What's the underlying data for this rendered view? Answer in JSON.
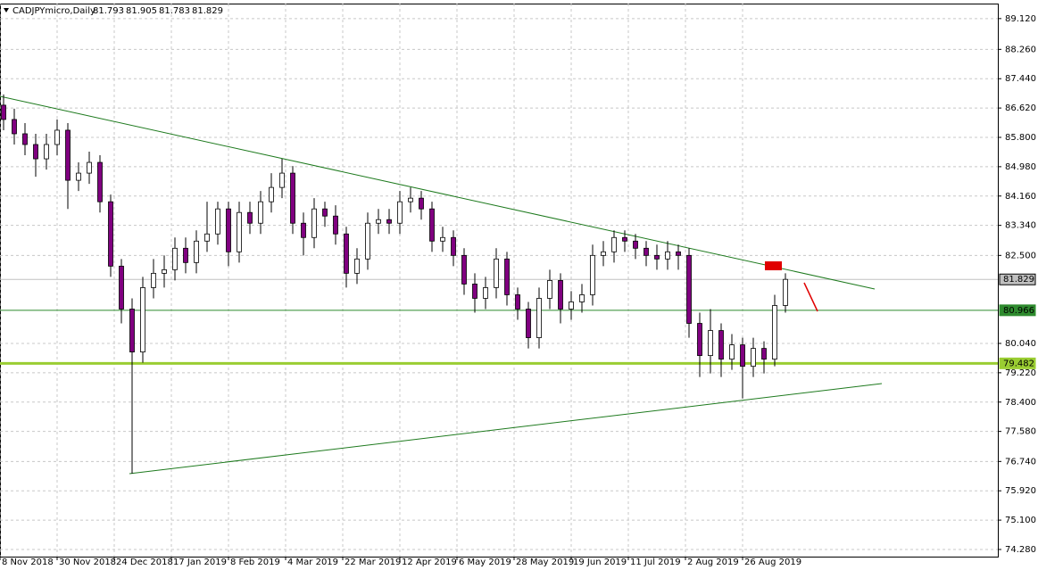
{
  "chart_data": {
    "type": "candlestick",
    "title": "CADJPYmicro,Daily",
    "quote": [
      81.793,
      81.905,
      81.783,
      81.829
    ],
    "up_color": "#ffffff",
    "down_color": "#800080",
    "xlim": [
      -1,
      278.5
    ],
    "ylim": [
      74.08,
      89.54
    ],
    "grid": true,
    "xticks": [
      {
        "value": -1,
        "label": "8 Nov 2018"
      },
      {
        "value": 15,
        "label": "30 Nov 2018"
      },
      {
        "value": 31,
        "label": "24 Dec 2018"
      },
      {
        "value": 47,
        "label": "17 Jan 2019"
      },
      {
        "value": 63,
        "label": "8 Feb 2019"
      },
      {
        "value": 79,
        "label": "4 Mar 2019"
      },
      {
        "value": 95,
        "label": "22 Mar 2019"
      },
      {
        "value": 111,
        "label": "12 Apr 2019"
      },
      {
        "value": 127,
        "label": "6 May 2019"
      },
      {
        "value": 143,
        "label": "28 May 2019"
      },
      {
        "value": 159,
        "label": "19 Jun 2019"
      },
      {
        "value": 175,
        "label": "11 Jul 2019"
      },
      {
        "value": 191,
        "label": "2 Aug 2019"
      },
      {
        "value": 207,
        "label": "26 Aug 2019"
      }
    ],
    "yticks": [
      {
        "value": 89.12,
        "label": "89.120"
      },
      {
        "value": 88.26,
        "label": "88.260"
      },
      {
        "value": 87.44,
        "label": "87.440"
      },
      {
        "value": 86.62,
        "label": "86.620"
      },
      {
        "value": 85.8,
        "label": "85.800"
      },
      {
        "value": 84.98,
        "label": "84.980"
      },
      {
        "value": 84.16,
        "label": "84.160"
      },
      {
        "value": 83.34,
        "label": "83.340"
      },
      {
        "value": 82.5,
        "label": "82.500"
      },
      {
        "value": 80.04,
        "label": "80.040"
      },
      {
        "value": 79.22,
        "label": "79.220"
      },
      {
        "value": 78.4,
        "label": "78.400"
      },
      {
        "value": 77.58,
        "label": "77.580"
      },
      {
        "value": 76.74,
        "label": "76.740"
      },
      {
        "value": 75.92,
        "label": "75.920"
      },
      {
        "value": 75.1,
        "label": "75.100"
      },
      {
        "value": 74.28,
        "label": "74.280"
      }
    ],
    "levels": [
      {
        "value": 81.829,
        "color": "#c0c0c0"
      },
      {
        "value": 80.966,
        "color": "#2e8b2e"
      },
      {
        "value": 79.482,
        "color": "#9acd32"
      }
    ],
    "candles": {
      "x": [
        0,
        3,
        6,
        9,
        12,
        15,
        18,
        21,
        24,
        27,
        30,
        33,
        36,
        39,
        42,
        45,
        48,
        51,
        54,
        57,
        60,
        63,
        66,
        69,
        72,
        75,
        78,
        81,
        84,
        87,
        90,
        93,
        96,
        99,
        102,
        105,
        108,
        111,
        114,
        117,
        120,
        123,
        126,
        129,
        132,
        135,
        138,
        141,
        144,
        147,
        150,
        153,
        156,
        159,
        162,
        165,
        168,
        171,
        174,
        177,
        180,
        183,
        186,
        189,
        192,
        195,
        198,
        201,
        204,
        207,
        210,
        213,
        216,
        219
      ],
      "open": [
        86.7,
        86.3,
        85.9,
        85.6,
        85.2,
        85.6,
        86.0,
        84.6,
        84.8,
        85.1,
        84.0,
        82.2,
        81.0,
        79.8,
        81.6,
        82.0,
        82.1,
        82.7,
        82.3,
        82.9,
        83.1,
        83.8,
        82.6,
        83.7,
        83.4,
        84.0,
        84.4,
        84.8,
        83.4,
        83.0,
        83.8,
        83.6,
        83.1,
        82.0,
        82.4,
        83.4,
        83.5,
        83.4,
        84.0,
        84.1,
        83.8,
        82.9,
        83.0,
        82.5,
        81.7,
        81.3,
        81.6,
        82.4,
        81.4,
        81.0,
        80.2,
        81.3,
        81.8,
        81.0,
        81.2,
        81.4,
        82.5,
        82.6,
        83.0,
        82.9,
        82.7,
        82.5,
        82.4,
        82.6,
        82.5,
        80.6,
        79.7,
        80.4,
        79.6,
        80.0,
        79.4,
        79.9,
        79.6,
        81.1
      ],
      "high": [
        87.0,
        86.6,
        86.2,
        85.9,
        85.9,
        86.3,
        86.2,
        85.1,
        85.4,
        85.3,
        84.2,
        82.4,
        81.3,
        81.9,
        82.4,
        82.5,
        83.0,
        83.0,
        83.2,
        84.0,
        84.0,
        84.0,
        84.0,
        84.0,
        84.3,
        84.8,
        85.2,
        85.0,
        83.7,
        84.1,
        84.0,
        83.9,
        83.3,
        82.7,
        83.7,
        83.8,
        83.8,
        84.3,
        84.4,
        84.3,
        84.0,
        83.3,
        83.2,
        82.7,
        82.0,
        81.9,
        82.7,
        82.6,
        81.6,
        81.2,
        81.6,
        82.1,
        82.0,
        81.5,
        81.7,
        82.8,
        82.9,
        83.2,
        83.2,
        83.1,
        82.9,
        82.8,
        82.9,
        82.8,
        82.7,
        80.9,
        81.0,
        80.6,
        80.3,
        80.2,
        80.2,
        80.1,
        81.4,
        82.0
      ],
      "low": [
        86.0,
        85.6,
        85.3,
        84.7,
        84.9,
        85.3,
        83.8,
        84.3,
        84.5,
        83.7,
        81.9,
        80.6,
        76.4,
        79.5,
        81.3,
        81.6,
        81.8,
        82.0,
        82.0,
        82.6,
        82.8,
        82.2,
        82.3,
        83.1,
        83.1,
        83.7,
        84.1,
        83.1,
        82.5,
        82.7,
        83.3,
        82.8,
        81.6,
        81.7,
        82.1,
        83.1,
        83.1,
        83.1,
        83.7,
        83.5,
        82.6,
        82.6,
        82.2,
        81.4,
        80.9,
        81.0,
        81.3,
        81.1,
        80.7,
        79.9,
        79.9,
        81.0,
        80.6,
        80.7,
        80.9,
        81.1,
        82.2,
        82.3,
        82.6,
        82.4,
        82.2,
        82.1,
        82.1,
        82.1,
        80.2,
        79.1,
        79.2,
        79.1,
        79.3,
        78.5,
        79.1,
        79.2,
        79.4,
        80.9
      ],
      "close": [
        86.3,
        85.9,
        85.6,
        85.2,
        85.6,
        86.0,
        84.6,
        84.8,
        85.1,
        84.0,
        82.2,
        81.0,
        79.8,
        81.6,
        82.0,
        82.1,
        82.7,
        82.3,
        82.9,
        83.1,
        83.8,
        82.6,
        83.7,
        83.4,
        84.0,
        84.4,
        84.8,
        83.4,
        83.0,
        83.8,
        83.6,
        83.1,
        82.0,
        82.4,
        83.4,
        83.5,
        83.4,
        84.0,
        84.1,
        83.8,
        82.9,
        83.0,
        82.5,
        81.7,
        81.3,
        81.6,
        82.4,
        81.4,
        81.0,
        80.2,
        81.3,
        81.8,
        81.0,
        81.2,
        81.4,
        82.5,
        82.6,
        83.0,
        82.9,
        82.7,
        82.5,
        82.4,
        82.6,
        82.5,
        80.6,
        79.7,
        80.4,
        79.6,
        80.0,
        79.4,
        79.9,
        79.6,
        81.1,
        81.83
      ]
    }
  }
}
